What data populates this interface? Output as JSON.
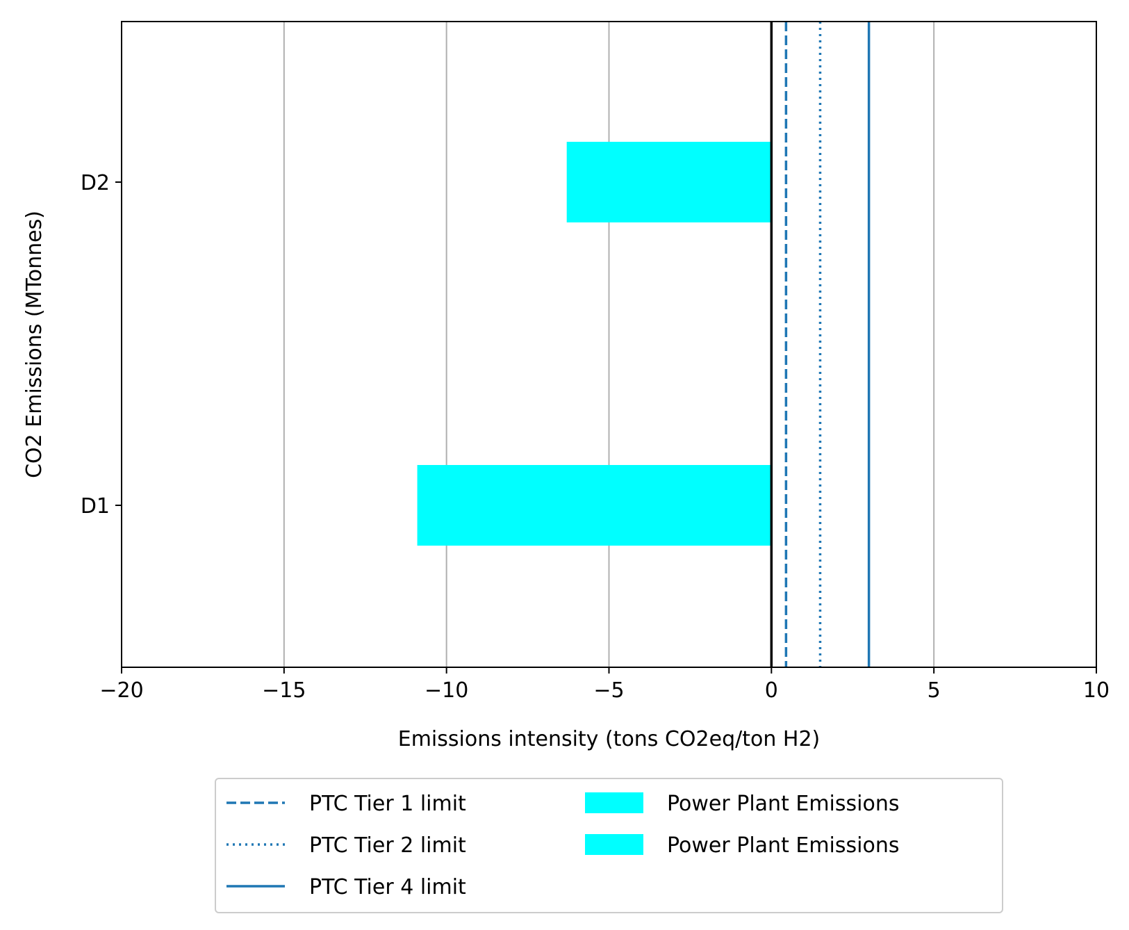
{
  "chart_data": {
    "type": "bar",
    "orientation": "horizontal",
    "xlabel": "Emissions intensity (tons CO2eq/ton H2)",
    "ylabel": "CO2 Emissions (MTonnes)",
    "xlim": [
      -20,
      10
    ],
    "xticks": [
      -20,
      -15,
      -10,
      -5,
      0,
      5,
      10
    ],
    "xtick_labels": [
      "−20",
      "−15",
      "−10",
      "−5",
      "0",
      "5",
      "10"
    ],
    "categories": [
      "D1",
      "D2"
    ],
    "series": [
      {
        "name": "Power Plant Emissions",
        "values": [
          -10.9,
          -6.3
        ],
        "color": "#00ffff"
      }
    ],
    "reference_lines": [
      {
        "name": "PTC Tier 1 limit",
        "x": 0.45,
        "style": "dashed",
        "color": "#1f77b4"
      },
      {
        "name": "PTC Tier 2 limit",
        "x": 1.5,
        "style": "dotted",
        "color": "#1f77b4"
      },
      {
        "name": "PTC Tier 4 limit",
        "x": 3.0,
        "style": "solid",
        "color": "#1f77b4"
      }
    ],
    "zero_line": {
      "x": 0,
      "color": "#000000"
    },
    "grid": "x",
    "legend": {
      "placement": "below-center",
      "columns": 2,
      "entries": [
        {
          "label": "PTC Tier 1 limit",
          "kind": "line",
          "style": "dashed",
          "color": "#1f77b4"
        },
        {
          "label": "PTC Tier 2 limit",
          "kind": "line",
          "style": "dotted",
          "color": "#1f77b4"
        },
        {
          "label": "PTC Tier 4 limit",
          "kind": "line",
          "style": "solid",
          "color": "#1f77b4"
        },
        {
          "label": "Power Plant Emissions",
          "kind": "patch",
          "color": "#00ffff"
        },
        {
          "label": "Power Plant Emissions",
          "kind": "patch",
          "color": "#00ffff"
        }
      ]
    }
  }
}
